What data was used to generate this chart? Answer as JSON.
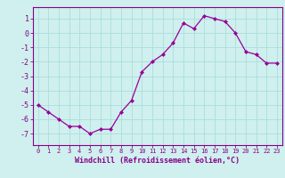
{
  "x": [
    0,
    1,
    2,
    3,
    4,
    5,
    6,
    7,
    8,
    9,
    10,
    11,
    12,
    13,
    14,
    15,
    16,
    17,
    18,
    19,
    20,
    21,
    22,
    23
  ],
  "y": [
    -5.0,
    -5.5,
    -6.0,
    -6.5,
    -6.5,
    -7.0,
    -6.7,
    -6.7,
    -5.5,
    -4.7,
    -2.7,
    -2.0,
    -1.5,
    -0.7,
    0.7,
    0.3,
    1.2,
    1.0,
    0.8,
    0.0,
    -1.3,
    -1.5,
    -2.1,
    -2.1
  ],
  "line_color": "#990099",
  "marker": "D",
  "markersize": 2.0,
  "linewidth": 0.9,
  "xlabel": "Windchill (Refroidissement éolien,°C)",
  "xlabel_fontsize": 6.0,
  "xtick_labels": [
    "0",
    "1",
    "2",
    "3",
    "4",
    "5",
    "6",
    "7",
    "8",
    "9",
    "10",
    "11",
    "12",
    "13",
    "14",
    "15",
    "16",
    "17",
    "18",
    "19",
    "20",
    "21",
    "22",
    "23"
  ],
  "yticks": [
    1,
    0,
    -1,
    -2,
    -3,
    -4,
    -5,
    -6,
    -7
  ],
  "ylim": [
    -7.8,
    1.8
  ],
  "xlim": [
    -0.5,
    23.5
  ],
  "background_color": "#cff0ee",
  "grid_color": "#aadddd",
  "tick_color": "#880088",
  "spine_color": "#880088",
  "ytick_fontsize": 6.0,
  "xtick_fontsize": 5.0
}
